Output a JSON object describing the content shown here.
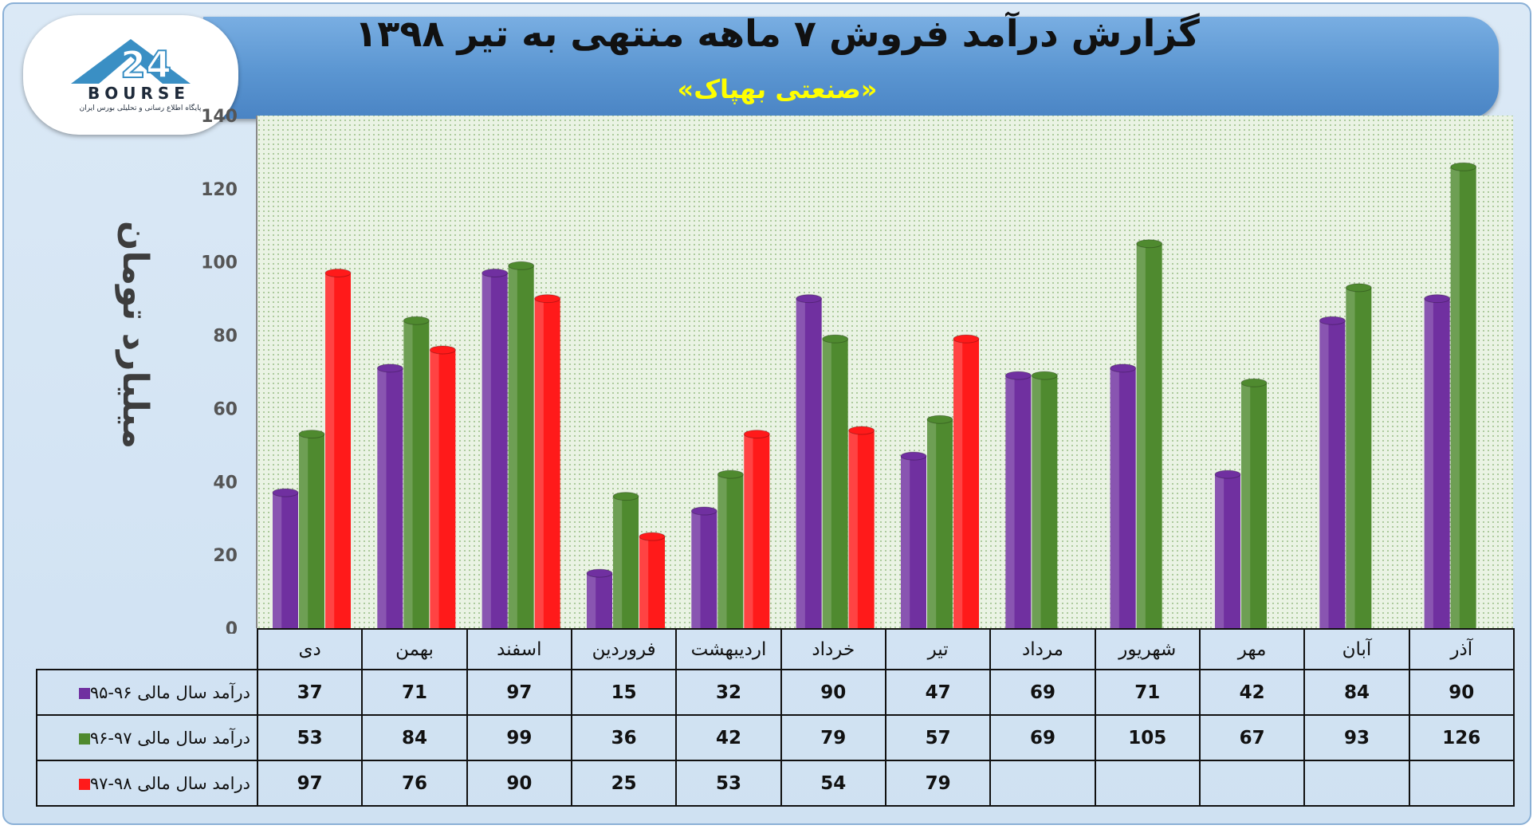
{
  "header": {
    "title": "گزارش درآمد فروش ۷ ماهه منتهی به تیر ۱۳۹۸",
    "subtitle": "«صنعتی بهپاک»"
  },
  "logo": {
    "text": "BOURSE",
    "sub": "پایگاه اطلاع رسانی و تحلیلی بورس ایران"
  },
  "colors": {
    "purple": "#7030a0",
    "green": "#4f8a2f",
    "red": "#ff1a1a",
    "plot_bg": "#e6f0e0"
  },
  "chart_data": {
    "type": "bar",
    "ylabel": "میلیارد تومان",
    "ylim": [
      0,
      140
    ],
    "yticks": [
      0,
      20,
      40,
      60,
      80,
      100,
      120,
      140
    ],
    "grid": true,
    "categories": [
      "دی",
      "بهمن",
      "اسفند",
      "فروردین",
      "اردیبهشت",
      "خرداد",
      "تیر",
      "مرداد",
      "شهریور",
      "مهر",
      "آبان",
      "آذر"
    ],
    "series": [
      {
        "name": "درآمد سال مالی ۹۶-۹۵",
        "color": "#7030a0",
        "values": [
          37,
          71,
          97,
          15,
          32,
          90,
          47,
          69,
          71,
          42,
          84,
          90
        ]
      },
      {
        "name": "درآمد سال مالی ۹۷-۹۶",
        "color": "#4f8a2f",
        "values": [
          53,
          84,
          99,
          36,
          42,
          79,
          57,
          69,
          105,
          67,
          93,
          126
        ]
      },
      {
        "name": "درامد سال مالی ۹۸-۹۷",
        "color": "#ff1a1a",
        "values": [
          97,
          76,
          90,
          25,
          53,
          54,
          79,
          null,
          null,
          null,
          null,
          null
        ]
      }
    ]
  }
}
